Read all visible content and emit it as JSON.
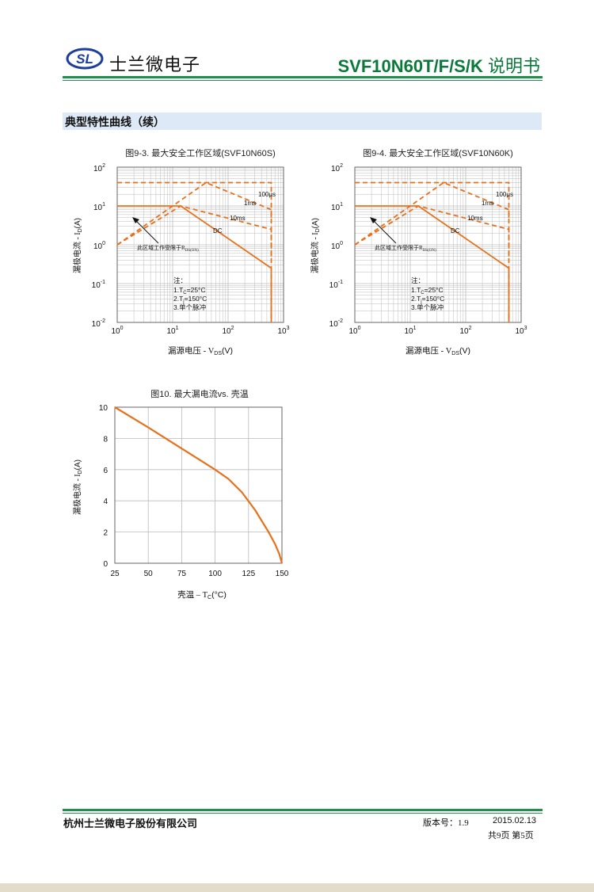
{
  "header": {
    "logo_mark": "SL",
    "company_short": "士兰微电子",
    "doc_title": "SVF10N60T/F/S/K",
    "doc_title_suffix": "说明书"
  },
  "section_title": "典型特性曲线（续）",
  "colors": {
    "accent": "#1f8f4e",
    "curve": "#e8701a",
    "grid": "#bbbbbb",
    "section_bg": "#dde9f6"
  },
  "soa_charts": [
    {
      "title": "图9-3. 最大安全工作区域(SVF10N60S)",
      "ylabel": "漏极电流 - I",
      "ylabel_sub": "D",
      "ylabel_unit": "(A)",
      "xlabel": "漏源电压 - V",
      "xlabel_sub": "DS",
      "xlabel_unit": "(V)",
      "curve_labels": {
        "us100": "100μs",
        "ms1": "1ms",
        "ms10": "10ms",
        "dc": "DC"
      },
      "limit_note": "此区域工作受限于R",
      "limit_note_sub": "DS(ON)",
      "notes": {
        "head": "注：",
        "n1": "1.T",
        "n1_sub": "C",
        "n1_val": "=25°C",
        "n2": "2.T",
        "n2_sub": "j",
        "n2_val": "=150°C",
        "n3": "3.单个脉冲"
      }
    },
    {
      "title": "图9-4. 最大安全工作区域(SVF10N60K)",
      "ylabel": "漏极电流 - I",
      "ylabel_sub": "D",
      "ylabel_unit": "(A)",
      "xlabel": "漏源电压 - V",
      "xlabel_sub": "DS",
      "xlabel_unit": "(V)",
      "curve_labels": {
        "us100": "100μs",
        "ms1": "1ms",
        "ms10": "10ms",
        "dc": "DC"
      },
      "limit_note": "此区域工作受限于R",
      "limit_note_sub": "DS(ON)",
      "notes": {
        "head": "注：",
        "n1": "1.T",
        "n1_sub": "C",
        "n1_val": "=25°C",
        "n2": "2.T",
        "n2_sub": "j",
        "n2_val": "=150°C",
        "n3": "3.单个脉冲"
      }
    }
  ],
  "chart_data": [
    {
      "type": "line",
      "title": "图9-3. 最大安全工作区域(SVF10N60S)",
      "xlabel": "漏源电压 - VDS(V)",
      "ylabel": "漏极电流 - ID(A)",
      "xscale": "log",
      "yscale": "log",
      "xlim": [
        1,
        1000
      ],
      "ylim": [
        0.01,
        100
      ],
      "x_tick_labels": [
        "10^0",
        "10^1",
        "10^2",
        "10^3"
      ],
      "y_tick_labels": [
        "10^2",
        "10^1",
        "10^0",
        "10^-1",
        "10^-2"
      ],
      "grid": true,
      "series": [
        {
          "name": "DC",
          "style": "solid",
          "points": [
            [
              1,
              10
            ],
            [
              14,
              10
            ],
            [
              600,
              0.25
            ],
            [
              600,
              0.01
            ]
          ]
        },
        {
          "name": "10ms",
          "style": "dashed",
          "points": [
            [
              1,
              1
            ],
            [
              14,
              10
            ],
            [
              600,
              2.5
            ],
            [
              600,
              0.5
            ]
          ]
        },
        {
          "name": "1ms",
          "style": "dashed",
          "points": [
            [
              1,
              1
            ],
            [
              40,
              40
            ],
            [
              600,
              8
            ],
            [
              600,
              4
            ]
          ]
        },
        {
          "name": "100μs",
          "style": "dashed",
          "points": [
            [
              1,
              40
            ],
            [
              600,
              40
            ],
            [
              600,
              0.01
            ]
          ]
        }
      ]
    },
    {
      "type": "line",
      "title": "图9-4. 最大安全工作区域(SVF10N60K)",
      "xlabel": "漏源电压 - VDS(V)",
      "ylabel": "漏极电流 - ID(A)",
      "xscale": "log",
      "yscale": "log",
      "xlim": [
        1,
        1000
      ],
      "ylim": [
        0.01,
        100
      ],
      "x_tick_labels": [
        "10^0",
        "10^1",
        "10^2",
        "10^3"
      ],
      "y_tick_labels": [
        "10^2",
        "10^1",
        "10^0",
        "10^-1",
        "10^-2"
      ],
      "grid": true,
      "series": [
        {
          "name": "DC",
          "style": "solid",
          "points": [
            [
              1,
              10
            ],
            [
              14,
              10
            ],
            [
              600,
              0.25
            ],
            [
              600,
              0.01
            ]
          ]
        },
        {
          "name": "10ms",
          "style": "dashed",
          "points": [
            [
              1,
              1
            ],
            [
              14,
              10
            ],
            [
              600,
              2.5
            ],
            [
              600,
              0.5
            ]
          ]
        },
        {
          "name": "1ms",
          "style": "dashed",
          "points": [
            [
              1,
              1
            ],
            [
              40,
              40
            ],
            [
              600,
              8
            ],
            [
              600,
              4
            ]
          ]
        },
        {
          "name": "100μs",
          "style": "dashed",
          "points": [
            [
              1,
              40
            ],
            [
              600,
              40
            ],
            [
              600,
              0.01
            ]
          ]
        }
      ]
    },
    {
      "type": "line",
      "title": "图10. 最大漏电流vs. 壳温",
      "xlabel": "壳温 – TC(°C)",
      "ylabel": "漏极电流 - ID(A)",
      "xlim": [
        25,
        150
      ],
      "ylim": [
        0,
        10
      ],
      "x_ticks": [
        25,
        50,
        75,
        100,
        125,
        150
      ],
      "y_ticks": [
        0,
        2,
        4,
        6,
        8,
        10
      ],
      "grid": true,
      "series": [
        {
          "points": [
            [
              25,
              10
            ],
            [
              50,
              8.7
            ],
            [
              75,
              7.35
            ],
            [
              100,
              6.0
            ],
            [
              110,
              5.4
            ],
            [
              120,
              4.55
            ],
            [
              130,
              3.4
            ],
            [
              140,
              2.0
            ],
            [
              145,
              1.2
            ],
            [
              148,
              0.6
            ],
            [
              150,
              0
            ]
          ]
        }
      ]
    }
  ],
  "footer": {
    "company": "杭州士兰微电子股份有限公司",
    "version": "版本号：1.9",
    "date": "2015.02.13",
    "pages": "共9页  第5页"
  }
}
